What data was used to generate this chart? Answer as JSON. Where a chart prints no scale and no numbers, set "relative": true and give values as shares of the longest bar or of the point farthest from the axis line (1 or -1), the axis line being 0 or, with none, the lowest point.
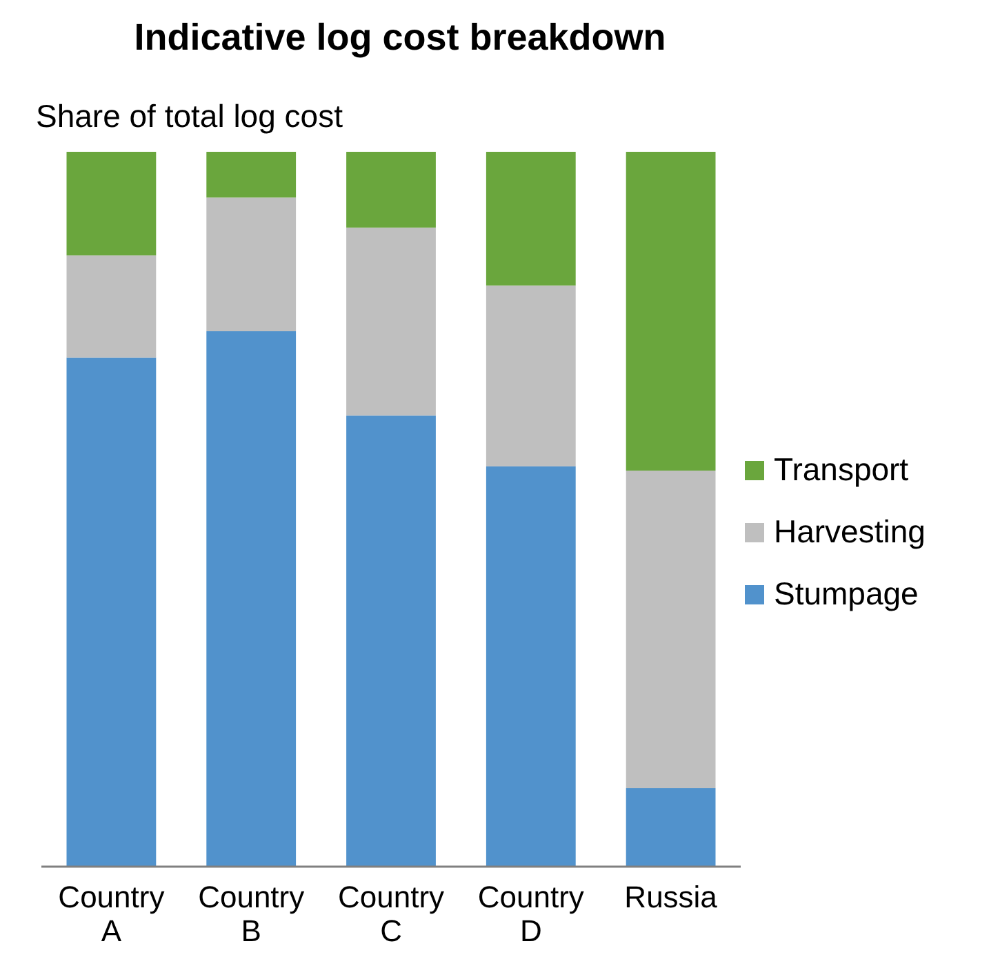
{
  "chart_data": {
    "type": "bar",
    "title": "Indicative log cost breakdown",
    "ylabel": "Share of total log cost",
    "categories": [
      "Country A",
      "Country B",
      "Country C",
      "Country D",
      "Russia"
    ],
    "stacked": true,
    "relative": true,
    "legend": "right",
    "series": [
      {
        "name": "Stumpage",
        "color": "#5192cc",
        "values": [
          0.712,
          0.749,
          0.631,
          0.56,
          0.11
        ]
      },
      {
        "name": "Harvesting",
        "color": "#bfbfbf",
        "values": [
          0.143,
          0.187,
          0.263,
          0.253,
          0.444
        ]
      },
      {
        "name": "Transport",
        "color": "#6aa63d",
        "values": [
          0.145,
          0.064,
          0.106,
          0.187,
          0.446
        ]
      }
    ]
  }
}
